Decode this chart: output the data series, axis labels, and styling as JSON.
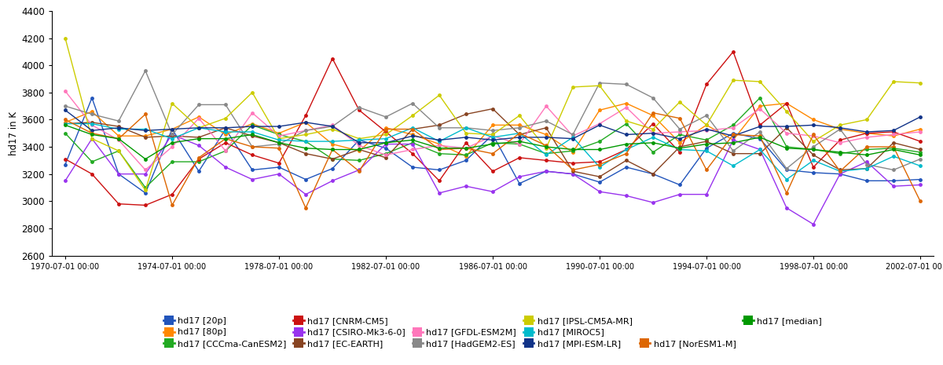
{
  "ylabel": "hd17 in K",
  "ylim": [
    2600,
    4400
  ],
  "yticks": [
    2600,
    2800,
    3000,
    3200,
    3400,
    3600,
    3800,
    4000,
    4200,
    4400
  ],
  "xtick_labels": [
    "1970-07-01 00:00",
    "1974-07-01 00:00",
    "1978-07-01 00:00",
    "1982-07-01 00:00",
    "1986-07-01 00:00",
    "1990-07-01 00:00",
    "1994-07-01 00:00",
    "1998-07-01 00:00",
    "2002-07-01 00:00"
  ],
  "x_positions": [
    0,
    4,
    8,
    12,
    16,
    20,
    24,
    28,
    32
  ],
  "n_points": 33,
  "series": [
    {
      "name": "hd17 [20p]",
      "color": "#2255bb",
      "data": [
        3270,
        3760,
        3200,
        3060,
        3530,
        3220,
        3530,
        3230,
        3250,
        3160,
        3240,
        3450,
        3390,
        3250,
        3230,
        3300,
        3490,
        3130,
        3220,
        3200,
        3140,
        3250,
        3200,
        3120,
        3390,
        3500,
        3460,
        3230,
        3210,
        3200,
        3150,
        3150,
        3160
      ]
    },
    {
      "name": "hd17 [80p]",
      "color": "#ff8800",
      "data": [
        3580,
        3660,
        3480,
        3480,
        3530,
        3620,
        3490,
        3570,
        3500,
        3580,
        3420,
        3370,
        3540,
        3490,
        3420,
        3330,
        3560,
        3560,
        3490,
        3360,
        3670,
        3720,
        3630,
        3430,
        3560,
        3450,
        3700,
        3720,
        3600,
        3530,
        3500,
        3480,
        3530
      ]
    },
    {
      "name": "hd17 [CCCma-CanESM2]",
      "color": "#22aa22",
      "data": [
        3500,
        3290,
        3370,
        3100,
        3290,
        3290,
        3370,
        3560,
        3490,
        3440,
        3310,
        3300,
        3350,
        3430,
        3350,
        3340,
        3430,
        3420,
        3350,
        3370,
        3440,
        3570,
        3360,
        3490,
        3450,
        3560,
        3760,
        3400,
        3380,
        3350,
        3380,
        3390,
        3360
      ]
    },
    {
      "name": "hd17 [CNRM-CM5]",
      "color": "#cc1111",
      "data": [
        3310,
        3200,
        2980,
        2970,
        3050,
        3310,
        3430,
        3340,
        3280,
        3630,
        4050,
        3670,
        3510,
        3350,
        3150,
        3430,
        3220,
        3320,
        3300,
        3280,
        3290,
        3380,
        3570,
        3360,
        3860,
        4100,
        3560,
        3720,
        3250,
        3450,
        3500,
        3510,
        3440
      ]
    },
    {
      "name": "hd17 [CSIRO-Mk3-6-0]",
      "color": "#9933ee",
      "data": [
        3150,
        3460,
        3200,
        3200,
        3490,
        3410,
        3250,
        3160,
        3200,
        3050,
        3150,
        3230,
        3420,
        3420,
        3060,
        3110,
        3070,
        3180,
        3220,
        3200,
        3070,
        3040,
        2990,
        3050,
        3050,
        3450,
        3380,
        2950,
        2830,
        3200,
        3290,
        3110,
        3120
      ]
    },
    {
      "name": "hd17 [EC-EARTH]",
      "color": "#884422",
      "data": [
        3570,
        3580,
        3550,
        3470,
        3480,
        3470,
        3540,
        3480,
        3430,
        3350,
        3310,
        3380,
        3320,
        3530,
        3560,
        3640,
        3680,
        3490,
        3540,
        3220,
        3180,
        3300,
        3200,
        3400,
        3440,
        3350,
        3350,
        3540,
        3340,
        3230,
        3240,
        3430,
        3380
      ]
    },
    {
      "name": "hd17 [GFDL-ESM2M]",
      "color": "#ff77bb",
      "data": [
        3810,
        3560,
        3450,
        3230,
        3400,
        3610,
        3370,
        3650,
        3480,
        3520,
        3560,
        3410,
        3340,
        3380,
        3410,
        3390,
        3480,
        3420,
        3700,
        3480,
        3570,
        3690,
        3500,
        3510,
        3520,
        3540,
        3680,
        3500,
        3480,
        3430,
        3470,
        3490,
        3510
      ]
    },
    {
      "name": "hd17 [HadGEM2-ES]",
      "color": "#888888",
      "data": [
        3700,
        3640,
        3590,
        3960,
        3490,
        3710,
        3710,
        3400,
        3420,
        3520,
        3550,
        3690,
        3620,
        3720,
        3540,
        3540,
        3520,
        3540,
        3590,
        3490,
        3870,
        3860,
        3760,
        3530,
        3630,
        3370,
        3510,
        3240,
        3400,
        3530,
        3270,
        3230,
        3310
      ]
    },
    {
      "name": "hd17 [IPSL-CM5A-MR]",
      "color": "#cccc00",
      "data": [
        4200,
        3460,
        3370,
        3080,
        3720,
        3540,
        3610,
        3800,
        3460,
        3490,
        3530,
        3460,
        3490,
        3630,
        3780,
        3500,
        3490,
        3630,
        3390,
        3840,
        3850,
        3590,
        3530,
        3730,
        3560,
        3890,
        3880,
        3660,
        3440,
        3560,
        3600,
        3880,
        3870
      ]
    },
    {
      "name": "hd17 [MIROC5]",
      "color": "#00bbcc",
      "data": [
        3570,
        3570,
        3530,
        3530,
        3460,
        3540,
        3510,
        3510,
        3450,
        3440,
        3440,
        3450,
        3460,
        3540,
        3440,
        3540,
        3470,
        3500,
        3340,
        3470,
        3250,
        3380,
        3470,
        3380,
        3370,
        3260,
        3380,
        3160,
        3300,
        3220,
        3240,
        3330,
        3260
      ]
    },
    {
      "name": "hd17 [MPI-ESM-LR]",
      "color": "#113388",
      "data": [
        3670,
        3520,
        3540,
        3520,
        3530,
        3540,
        3540,
        3550,
        3550,
        3580,
        3550,
        3430,
        3430,
        3480,
        3450,
        3470,
        3450,
        3470,
        3470,
        3460,
        3560,
        3490,
        3500,
        3460,
        3530,
        3480,
        3550,
        3550,
        3560,
        3540,
        3510,
        3520,
        3620
      ]
    },
    {
      "name": "hd17 [NorESM1-M]",
      "color": "#dd6600",
      "data": [
        3600,
        3500,
        3460,
        3640,
        2970,
        3320,
        3460,
        3400,
        3390,
        2950,
        3380,
        3220,
        3530,
        3530,
        3380,
        3390,
        3350,
        3500,
        3410,
        3230,
        3270,
        3350,
        3650,
        3610,
        3230,
        3490,
        3480,
        3060,
        3490,
        3220,
        3400,
        3400,
        3000
      ]
    },
    {
      "name": "hd17 [median]",
      "color": "#009900",
      "data": [
        3560,
        3490,
        3460,
        3310,
        3430,
        3460,
        3460,
        3490,
        3430,
        3390,
        3380,
        3380,
        3430,
        3450,
        3390,
        3390,
        3420,
        3440,
        3400,
        3380,
        3380,
        3420,
        3430,
        3390,
        3420,
        3430,
        3470,
        3390,
        3380,
        3360,
        3340,
        3380,
        3340
      ]
    }
  ],
  "legend_row1": [
    {
      "label": "hd17 [20p]",
      "color": "#2255bb"
    },
    {
      "label": "hd17 [80p]",
      "color": "#ff8800"
    },
    {
      "label": "hd17 [CCCma-CanESM2]",
      "color": "#22aa22"
    },
    {
      "label": "hd17 [CNRM-CM5]",
      "color": "#cc1111"
    },
    {
      "label": "hd17 [CSIRO-Mk3-6-0]",
      "color": "#9933ee"
    },
    {
      "label": "hd17 [EC-EARTH]",
      "color": "#884422"
    }
  ],
  "legend_row2": [
    {
      "label": "hd17 [GFDL-ESM2M]",
      "color": "#ff77bb"
    },
    {
      "label": "hd17 [HadGEM2-ES]",
      "color": "#888888"
    },
    {
      "label": "hd17 [IPSL-CM5A-MR]",
      "color": "#cccc00"
    },
    {
      "label": "hd17 [MIROC5]",
      "color": "#00bbcc"
    },
    {
      "label": "hd17 [MPI-ESM-LR]",
      "color": "#113388"
    }
  ],
  "legend_row3": [
    {
      "label": "hd17 [NorESM1-M]",
      "color": "#dd6600"
    },
    {
      "label": "hd17 [median]",
      "color": "#009900"
    }
  ]
}
